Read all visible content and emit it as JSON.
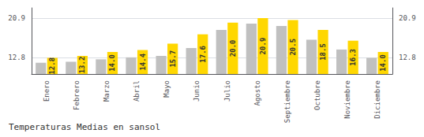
{
  "chart_data": {
    "type": "bar",
    "title": "Temperaturas Medias en sansol",
    "categories": [
      "Enero",
      "Febrero",
      "Marzo",
      "Abril",
      "Mayo",
      "Junio",
      "Julio",
      "Agosto",
      "Septiembre",
      "Octubre",
      "Noviembre",
      "Diciembre"
    ],
    "series": [
      {
        "color": "#C0C0C0",
        "values": [
          11.8,
          12.0,
          12.5,
          12.9,
          13.2,
          14.8,
          18.5,
          19.8,
          19.3,
          16.5,
          14.5,
          12.8
        ]
      },
      {
        "color": "#FFD700",
        "values": [
          12.8,
          13.2,
          14.0,
          14.4,
          15.7,
          17.6,
          20.0,
          20.9,
          20.5,
          18.5,
          16.3,
          14.0
        ],
        "data_labels": true,
        "value_labels": [
          "12.8",
          "13.2",
          "14.0",
          "14.4",
          "15.7",
          "17.6",
          "20.0",
          "20.9",
          "20.5",
          "18.5",
          "16.3",
          "14.0"
        ]
      }
    ],
    "ylim": [
      9.5,
      23.0
    ],
    "yticks": [
      12.8,
      20.9
    ],
    "y2lim": [
      9.5,
      23.0
    ],
    "y2ticks": [
      12.8,
      20.9
    ],
    "grid": true
  }
}
